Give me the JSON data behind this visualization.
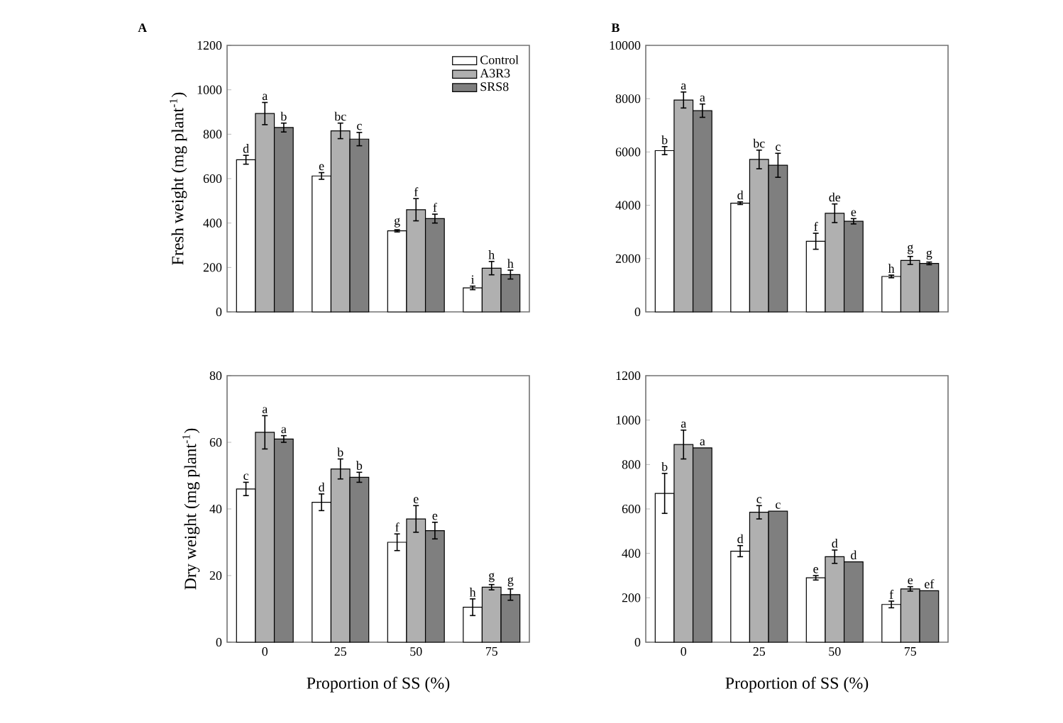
{
  "chart_data": [
    {
      "type": "bar",
      "title": "A",
      "ylabel": "Fresh weight (mg plant$^{-1}$)",
      "categories": [
        "0",
        "25",
        "50",
        "75"
      ],
      "ylim": [
        0,
        1200
      ],
      "yticks": [
        0,
        200,
        400,
        600,
        800,
        1000,
        1200
      ],
      "tick_labels": "y",
      "legend": "top right",
      "series": [
        {
          "name": "Control",
          "color": "#ffffff",
          "values": [
            685,
            612,
            365,
            108
          ],
          "errors": [
            20,
            15,
            5,
            8
          ],
          "value_labels": [
            "d",
            "e",
            "g",
            "i"
          ]
        },
        {
          "name": "A3R3",
          "color": "#b0b0b0",
          "values": [
            893,
            815,
            460,
            197
          ],
          "errors": [
            50,
            35,
            50,
            30
          ],
          "value_labels": [
            "a",
            "bc",
            "f",
            "h"
          ]
        },
        {
          "name": "SRS8",
          "color": "#7f7f7f",
          "values": [
            830,
            778,
            420,
            168
          ],
          "errors": [
            20,
            30,
            20,
            20
          ],
          "value_labels": [
            "b",
            "c",
            "f",
            "h"
          ]
        }
      ]
    },
    {
      "type": "bar",
      "title": "B",
      "categories": [
        "0",
        "25",
        "50",
        "75"
      ],
      "ylim": [
        0,
        10000
      ],
      "yticks": [
        0,
        2000,
        4000,
        6000,
        8000,
        10000
      ],
      "tick_labels": "y",
      "series": [
        {
          "color": "#ffffff",
          "values": [
            6050,
            4080,
            2650,
            1330
          ],
          "errors": [
            150,
            50,
            300,
            50
          ],
          "value_labels": [
            "b",
            "d",
            "f",
            "h"
          ]
        },
        {
          "color": "#b0b0b0",
          "values": [
            7950,
            5720,
            3700,
            1930
          ],
          "errors": [
            300,
            350,
            350,
            150
          ],
          "value_labels": [
            "a",
            "bc",
            "de",
            "g"
          ]
        },
        {
          "color": "#7f7f7f",
          "values": [
            7550,
            5500,
            3400,
            1820
          ],
          "errors": [
            250,
            450,
            100,
            50
          ],
          "value_labels": [
            "a",
            "c",
            "e",
            "g"
          ]
        }
      ]
    },
    {
      "type": "bar",
      "ylabel": "Dry weight (mg plant$^{-1}$)",
      "xlabel": "Proportion of SS (%)",
      "categories": [
        "0",
        "25",
        "50",
        "75"
      ],
      "ylim": [
        0,
        80
      ],
      "yticks": [
        0,
        20,
        40,
        60,
        80
      ],
      "series": [
        {
          "color": "#ffffff",
          "values": [
            46,
            42,
            30,
            10.5
          ],
          "errors": [
            2,
            2.5,
            2.5,
            2.5
          ],
          "value_labels": [
            "c",
            "d",
            "f",
            "h"
          ]
        },
        {
          "color": "#b0b0b0",
          "values": [
            63,
            52,
            37,
            16.5
          ],
          "errors": [
            5,
            3,
            4,
            0.8
          ],
          "value_labels": [
            "a",
            "b",
            "e",
            "g"
          ]
        },
        {
          "color": "#7f7f7f",
          "values": [
            61,
            49.5,
            33.5,
            14.3
          ],
          "errors": [
            1,
            1.5,
            2.5,
            1.7
          ],
          "value_labels": [
            "a",
            "b",
            "e",
            "g"
          ]
        }
      ]
    },
    {
      "type": "bar",
      "xlabel": "Proportion of SS (%)",
      "categories": [
        "0",
        "25",
        "50",
        "75"
      ],
      "ylim": [
        0,
        1200
      ],
      "yticks": [
        0,
        200,
        400,
        600,
        800,
        1000,
        1200
      ],
      "series": [
        {
          "color": "#ffffff",
          "values": [
            670,
            410,
            290,
            170
          ],
          "errors": [
            90,
            25,
            10,
            15
          ],
          "value_labels": [
            "b",
            "d",
            "e",
            "f"
          ]
        },
        {
          "color": "#b0b0b0",
          "values": [
            890,
            585,
            385,
            240
          ],
          "errors": [
            65,
            30,
            30,
            10
          ],
          "value_labels": [
            "a",
            "c",
            "d",
            "e"
          ]
        },
        {
          "color": "#7f7f7f",
          "values": [
            875,
            590,
            362,
            232
          ],
          "value_labels": [
            "a",
            "c",
            "d",
            "ef"
          ]
        }
      ]
    }
  ]
}
